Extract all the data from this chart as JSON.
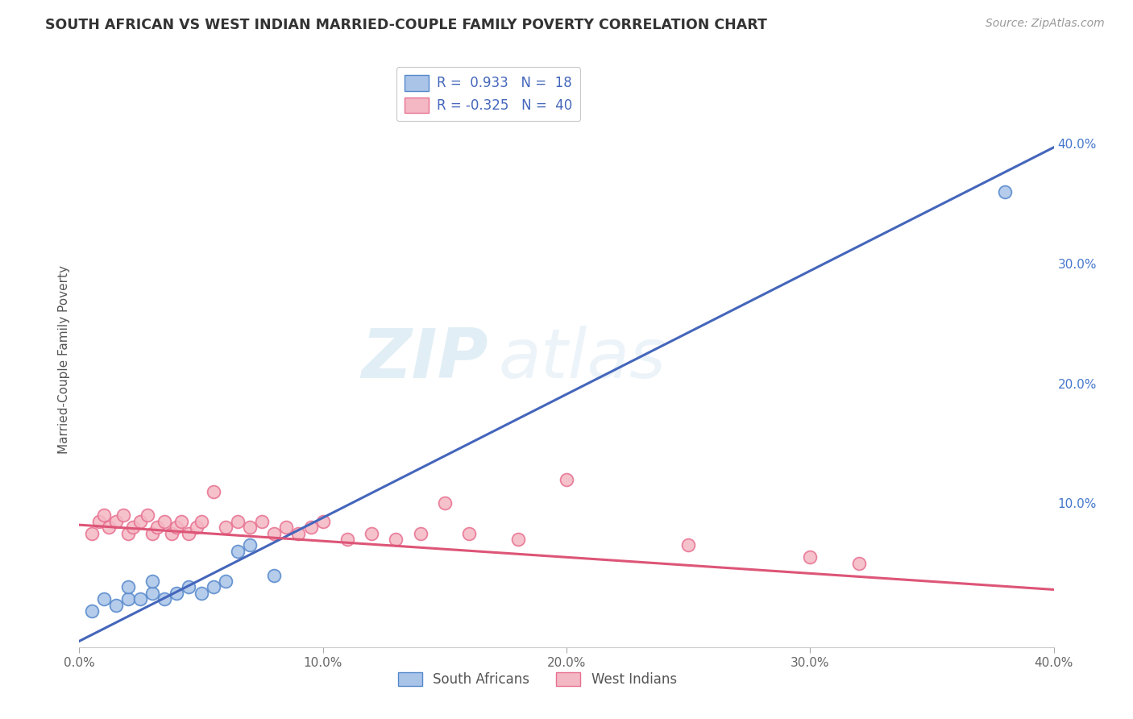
{
  "title": "SOUTH AFRICAN VS WEST INDIAN MARRIED-COUPLE FAMILY POVERTY CORRELATION CHART",
  "source": "Source: ZipAtlas.com",
  "ylabel": "Married-Couple Family Poverty",
  "xlim": [
    0.0,
    0.4
  ],
  "ylim": [
    -0.02,
    0.46
  ],
  "xticks": [
    0.0,
    0.1,
    0.2,
    0.3,
    0.4
  ],
  "yticks_right": [
    0.1,
    0.2,
    0.3,
    0.4
  ],
  "grid_color": "#cccccc",
  "background_color": "#ffffff",
  "watermark_zip": "ZIP",
  "watermark_atlas": "atlas",
  "blue_color": "#aac4e8",
  "pink_color": "#f4b8c4",
  "blue_edge_color": "#5588cc",
  "pink_edge_color": "#e87090",
  "blue_line_color": "#4466bb",
  "pink_line_color": "#dd5577",
  "right_axis_color": "#4477cc",
  "sa_x": [
    0.005,
    0.01,
    0.015,
    0.02,
    0.02,
    0.025,
    0.03,
    0.03,
    0.035,
    0.04,
    0.045,
    0.05,
    0.055,
    0.06,
    0.065,
    0.07,
    0.08,
    0.38
  ],
  "sa_y": [
    0.01,
    0.02,
    0.015,
    0.02,
    0.03,
    0.02,
    0.025,
    0.035,
    0.02,
    0.025,
    0.03,
    0.025,
    0.03,
    0.035,
    0.06,
    0.065,
    0.04,
    0.36
  ],
  "wi_x": [
    0.005,
    0.008,
    0.01,
    0.012,
    0.015,
    0.018,
    0.02,
    0.022,
    0.025,
    0.028,
    0.03,
    0.032,
    0.035,
    0.038,
    0.04,
    0.042,
    0.045,
    0.048,
    0.05,
    0.055,
    0.06,
    0.065,
    0.07,
    0.075,
    0.08,
    0.085,
    0.09,
    0.095,
    0.1,
    0.11,
    0.12,
    0.13,
    0.14,
    0.15,
    0.16,
    0.18,
    0.2,
    0.25,
    0.3,
    0.32
  ],
  "wi_y": [
    0.075,
    0.085,
    0.09,
    0.08,
    0.085,
    0.09,
    0.075,
    0.08,
    0.085,
    0.09,
    0.075,
    0.08,
    0.085,
    0.075,
    0.08,
    0.085,
    0.075,
    0.08,
    0.085,
    0.11,
    0.08,
    0.085,
    0.08,
    0.085,
    0.075,
    0.08,
    0.075,
    0.08,
    0.085,
    0.07,
    0.075,
    0.07,
    0.075,
    0.1,
    0.075,
    0.07,
    0.12,
    0.065,
    0.055,
    0.05
  ]
}
